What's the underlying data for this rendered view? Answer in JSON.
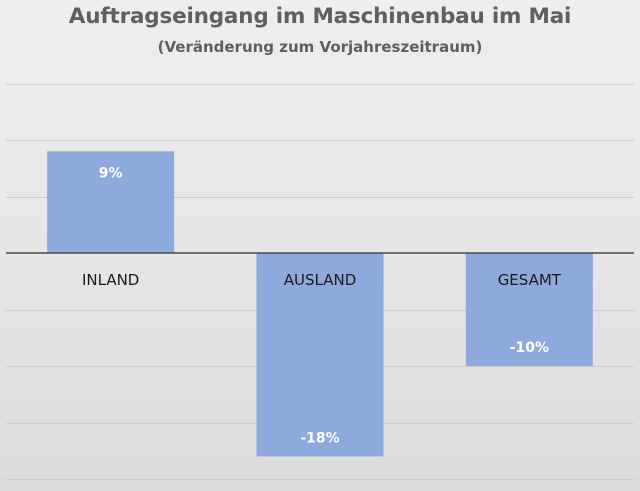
{
  "chart_data": {
    "type": "bar",
    "title": "Auftragseingang im Maschinenbau im Mai",
    "subtitle": "(Veränderung zum Vorjahreszeitraum)",
    "categories": [
      "INLAND",
      "AUSLAND",
      "GESAMT"
    ],
    "values": [
      9,
      -18,
      -10
    ],
    "data_labels": [
      "9%",
      "-18%",
      "-10%"
    ],
    "unit": "%",
    "ylim": [
      -20,
      15
    ],
    "grid": true,
    "legend": "none",
    "bar_color": "#8ea9db"
  }
}
